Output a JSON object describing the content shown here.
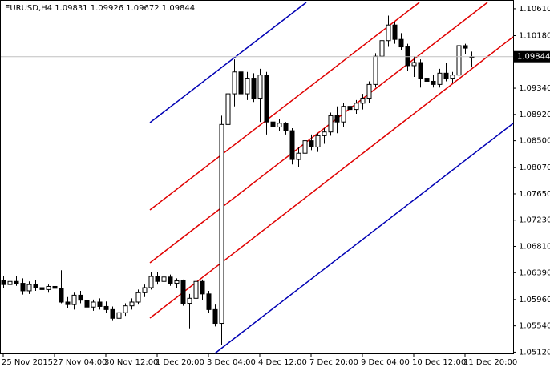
{
  "chart_data": {
    "type": "candlestick",
    "title": "EURUSD,H4  1.09831 1.09926 1.09672 1.09844",
    "categories": [
      "25 Nov 2015",
      null,
      null,
      null,
      null,
      null,
      null,
      null,
      "27 Nov 04:00",
      null,
      null,
      null,
      null,
      null,
      null,
      null,
      "30 Nov 12:00",
      null,
      null,
      null,
      null,
      null,
      null,
      null,
      "1 Dec 20:00",
      null,
      null,
      null,
      null,
      null,
      null,
      null,
      "3 Dec 04:00",
      null,
      null,
      null,
      null,
      null,
      null,
      null,
      "4 Dec 12:00",
      null,
      null,
      null,
      null,
      null,
      null,
      null,
      "7 Dec 20:00",
      null,
      null,
      null,
      null,
      null,
      null,
      null,
      "9 Dec 04:00",
      null,
      null,
      null,
      null,
      null,
      null,
      null,
      "10 Dec 12:00",
      null,
      null,
      null,
      null,
      null,
      null,
      null,
      "11 Dec 20:00",
      null
    ],
    "open": [
      1.0627,
      1.062,
      1.0625,
      1.0622,
      1.061,
      1.062,
      1.0615,
      1.0612,
      1.0617,
      1.0614,
      1.0592,
      1.0588,
      1.0603,
      1.0595,
      1.0584,
      1.0592,
      1.0585,
      1.058,
      1.0566,
      1.0575,
      1.0586,
      1.0592,
      1.0607,
      1.0615,
      1.0633,
      1.0625,
      1.0632,
      1.0622,
      1.0626,
      1.059,
      1.0598,
      1.0625,
      1.0605,
      1.058,
      1.0558,
      1.0876,
      1.0925,
      1.096,
      1.0925,
      1.095,
      1.0918,
      1.0955,
      1.088,
      1.0872,
      1.0878,
      1.0866,
      1.082,
      1.083,
      1.085,
      1.084,
      1.0858,
      1.0864,
      1.089,
      1.088,
      1.0905,
      1.09,
      1.091,
      1.0918,
      1.094,
      1.0985,
      1.101,
      1.1035,
      1.1012,
      1.1,
      1.097,
      1.0975,
      1.095,
      1.0945,
      1.094,
      1.0958,
      1.095,
      1.0955,
      1.1002,
      1.09831
    ],
    "high": [
      1.0633,
      1.063,
      1.0633,
      1.063,
      1.0625,
      1.0627,
      1.0622,
      1.062,
      1.0625,
      1.0643,
      1.06,
      1.0607,
      1.061,
      1.0603,
      1.0596,
      1.0598,
      1.0593,
      1.0585,
      1.058,
      1.059,
      1.0598,
      1.0612,
      1.062,
      1.064,
      1.064,
      1.0638,
      1.0636,
      1.063,
      1.0628,
      1.0605,
      1.0633,
      1.0628,
      1.061,
      1.0588,
      1.089,
      1.0935,
      1.098,
      1.0975,
      1.096,
      1.0958,
      1.0965,
      1.096,
      1.089,
      1.0885,
      1.088,
      1.087,
      1.084,
      1.0855,
      1.086,
      1.0862,
      1.087,
      1.0895,
      1.0905,
      1.091,
      1.0915,
      1.0915,
      1.0925,
      1.0945,
      1.099,
      1.102,
      1.105,
      1.104,
      1.1022,
      1.1005,
      1.0985,
      1.098,
      1.0965,
      1.0955,
      1.0965,
      1.0975,
      1.096,
      1.104,
      1.1005,
      1.09926
    ],
    "low": [
      1.0614,
      1.0614,
      1.0618,
      1.0604,
      1.0605,
      1.061,
      1.0605,
      1.0607,
      1.0608,
      1.059,
      1.0582,
      1.058,
      1.059,
      1.058,
      1.0578,
      1.058,
      1.0575,
      1.0563,
      1.0563,
      1.057,
      1.058,
      1.0588,
      1.06,
      1.0612,
      1.062,
      1.0615,
      1.0618,
      1.0615,
      1.0586,
      1.055,
      1.0592,
      1.0595,
      1.0575,
      1.0553,
      1.0524,
      1.083,
      1.0905,
      1.091,
      1.0915,
      1.0912,
      1.088,
      1.086,
      1.0855,
      1.0865,
      1.086,
      1.0812,
      1.0808,
      1.0812,
      1.0835,
      1.0832,
      1.0845,
      1.0858,
      1.0862,
      1.0872,
      1.0895,
      1.0893,
      1.09,
      1.091,
      1.0935,
      1.0975,
      1.1,
      1.1005,
      1.0995,
      1.0962,
      1.0952,
      1.0935,
      1.094,
      1.0935,
      1.0935,
      1.0945,
      1.0942,
      1.0948,
      1.0988,
      1.09672
    ],
    "close": [
      1.062,
      1.0625,
      1.0622,
      1.061,
      1.062,
      1.0615,
      1.0612,
      1.0617,
      1.0614,
      1.0592,
      1.0588,
      1.0603,
      1.0595,
      1.0584,
      1.0592,
      1.0585,
      1.058,
      1.0566,
      1.0575,
      1.0586,
      1.0592,
      1.0607,
      1.0615,
      1.0633,
      1.0625,
      1.0632,
      1.0622,
      1.0626,
      1.059,
      1.0598,
      1.0625,
      1.0605,
      1.058,
      1.0558,
      1.0876,
      1.0925,
      1.096,
      1.0925,
      1.095,
      1.0918,
      1.0955,
      1.088,
      1.0872,
      1.0878,
      1.0866,
      1.082,
      1.083,
      1.085,
      1.084,
      1.0858,
      1.0864,
      1.089,
      1.088,
      1.0905,
      1.09,
      1.091,
      1.0918,
      1.094,
      1.0985,
      1.101,
      1.1035,
      1.1012,
      1.1,
      1.097,
      1.0975,
      1.095,
      1.0945,
      1.094,
      1.0958,
      1.095,
      1.0955,
      1.1002,
      1.0998,
      1.09844
    ],
    "current_price": 1.09844,
    "ylim": [
      1.051,
      1.1075
    ],
    "yticks": [
      {
        "value": 1.1061,
        "label": "1.10610"
      },
      {
        "value": 1.1018,
        "label": "1.10180"
      },
      {
        "value": 1.0934,
        "label": "1.09340"
      },
      {
        "value": 1.0892,
        "label": "1.08920"
      },
      {
        "value": 1.085,
        "label": "1.08500"
      },
      {
        "value": 1.0807,
        "label": "1.08070"
      },
      {
        "value": 1.0765,
        "label": "1.07650"
      },
      {
        "value": 1.0723,
        "label": "1.07230"
      },
      {
        "value": 1.0681,
        "label": "1.06810"
      },
      {
        "value": 1.0639,
        "label": "1.06390"
      },
      {
        "value": 1.0596,
        "label": "1.05960"
      },
      {
        "value": 1.0554,
        "label": "1.05540"
      },
      {
        "value": 1.0512,
        "label": "1.05120"
      }
    ]
  }
}
